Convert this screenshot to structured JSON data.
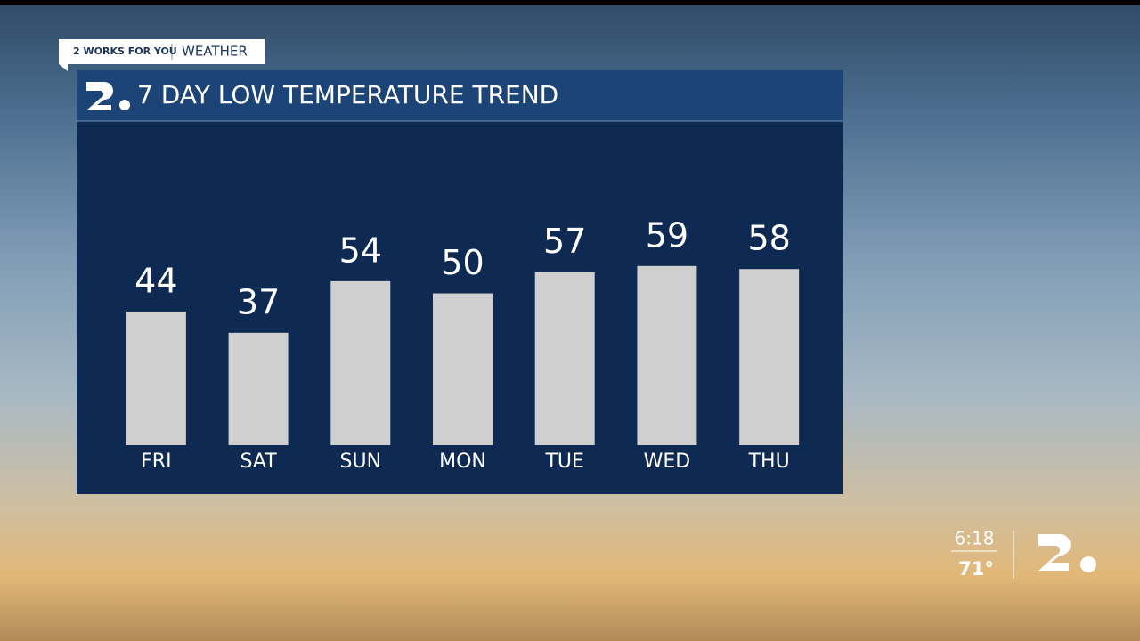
{
  "tag": {
    "brand": "2 WORKS FOR YOU",
    "section": "WEATHER"
  },
  "chart_data": {
    "type": "bar",
    "title": "7 DAY LOW TEMPERATURE TREND",
    "categories": [
      "FRI",
      "SAT",
      "SUN",
      "MON",
      "TUE",
      "WED",
      "THU"
    ],
    "values": [
      44,
      37,
      54,
      50,
      57,
      59,
      58
    ],
    "color": "#cfcfcf"
  },
  "bug": {
    "time": "6:18",
    "temperature": "71°"
  }
}
